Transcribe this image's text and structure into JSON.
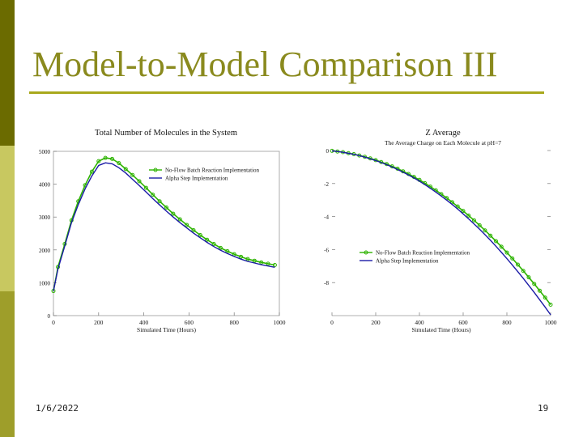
{
  "slide": {
    "title": "Model-to-Model Comparison III",
    "date": "1/6/2022",
    "page_number": "19",
    "colors": {
      "accent": "#8a8a1e",
      "rule": "#a8a81c",
      "bar_dark": "#6b6b00",
      "bar_light": "#c8c860",
      "bar_mid": "#9e9e2a"
    }
  },
  "chart_data": [
    {
      "type": "line",
      "title": "Total Number of Molecules in the System",
      "subtitle": "",
      "xlabel": "Simulated Time (Hours)",
      "ylabel": "",
      "xlim": [
        0,
        1000
      ],
      "ylim": [
        0,
        5000
      ],
      "x_ticks": [
        "0",
        "200",
        "400",
        "600",
        "800",
        "1000"
      ],
      "y_ticks": [
        "0",
        "1000",
        "2000",
        "3000",
        "4000",
        "5000"
      ],
      "legend": "upper-right",
      "series": [
        {
          "name": "No-Flow Batch Reaction Implementation",
          "color": "#2db300",
          "marker": "circle",
          "x": [
            0,
            20,
            50,
            80,
            110,
            140,
            170,
            200,
            230,
            260,
            290,
            320,
            350,
            380,
            410,
            440,
            470,
            500,
            530,
            560,
            590,
            620,
            650,
            680,
            710,
            740,
            770,
            800,
            830,
            860,
            890,
            920,
            950,
            980
          ],
          "values": [
            750,
            1480,
            2180,
            2900,
            3480,
            3970,
            4380,
            4700,
            4800,
            4770,
            4640,
            4460,
            4280,
            4090,
            3890,
            3680,
            3480,
            3290,
            3100,
            2930,
            2760,
            2600,
            2450,
            2310,
            2180,
            2060,
            1960,
            1870,
            1790,
            1720,
            1670,
            1620,
            1580,
            1540
          ]
        },
        {
          "name": "Alpha Step Implementation",
          "color": "#1a1aa6",
          "marker": "",
          "x": [
            0,
            20,
            50,
            80,
            110,
            140,
            170,
            200,
            230,
            260,
            290,
            320,
            350,
            380,
            410,
            440,
            470,
            500,
            530,
            560,
            590,
            620,
            650,
            680,
            710,
            740,
            770,
            800,
            830,
            860,
            890,
            920,
            950,
            980
          ],
          "values": [
            750,
            1420,
            2120,
            2830,
            3380,
            3860,
            4250,
            4570,
            4650,
            4620,
            4500,
            4340,
            4150,
            3960,
            3760,
            3560,
            3370,
            3180,
            3000,
            2830,
            2670,
            2510,
            2370,
            2230,
            2100,
            1990,
            1890,
            1800,
            1720,
            1650,
            1600,
            1550,
            1510,
            1470
          ]
        }
      ]
    },
    {
      "type": "line",
      "title": "Z Average",
      "subtitle": "The Average Charge on Each Molecule at pH=7",
      "xlabel": "Simulated Time (Hours)",
      "ylabel": "",
      "xlim": [
        0,
        1000
      ],
      "ylim": [
        -10,
        0
      ],
      "x_ticks": [
        "0",
        "200",
        "400",
        "600",
        "800",
        "1000"
      ],
      "y_ticks": [
        "0",
        "-2",
        "-4",
        "-6",
        "-8"
      ],
      "legend": "lower-left",
      "series": [
        {
          "name": "No-Flow Batch Reaction Implementation",
          "color": "#2db300",
          "marker": "circle",
          "x": [
            0,
            25,
            50,
            75,
            100,
            125,
            150,
            175,
            200,
            225,
            250,
            275,
            300,
            325,
            350,
            375,
            400,
            425,
            450,
            475,
            500,
            525,
            550,
            575,
            600,
            625,
            650,
            675,
            700,
            725,
            750,
            775,
            800,
            825,
            850,
            875,
            900,
            925,
            950,
            975,
            1000
          ],
          "values": [
            -0.02,
            -0.06,
            -0.1,
            -0.16,
            -0.22,
            -0.3,
            -0.38,
            -0.48,
            -0.58,
            -0.7,
            -0.82,
            -0.96,
            -1.1,
            -1.26,
            -1.42,
            -1.6,
            -1.78,
            -1.98,
            -2.19,
            -2.41,
            -2.64,
            -2.88,
            -3.13,
            -3.39,
            -3.66,
            -3.94,
            -4.23,
            -4.53,
            -4.84,
            -5.16,
            -5.49,
            -5.83,
            -6.18,
            -6.54,
            -6.91,
            -7.29,
            -7.68,
            -8.08,
            -8.49,
            -8.91,
            -9.34
          ]
        },
        {
          "name": "Alpha Step Implementation",
          "color": "#1a1aa6",
          "marker": "",
          "x": [
            0,
            25,
            50,
            75,
            100,
            125,
            150,
            175,
            200,
            225,
            250,
            275,
            300,
            325,
            350,
            375,
            400,
            425,
            450,
            475,
            500,
            525,
            550,
            575,
            600,
            625,
            650,
            675,
            700,
            725,
            750,
            775,
            800,
            825,
            850,
            875,
            900,
            925,
            950,
            975,
            1000
          ],
          "values": [
            -0.02,
            -0.06,
            -0.11,
            -0.17,
            -0.23,
            -0.31,
            -0.4,
            -0.5,
            -0.61,
            -0.73,
            -0.86,
            -1.0,
            -1.15,
            -1.31,
            -1.48,
            -1.66,
            -1.86,
            -2.07,
            -2.29,
            -2.52,
            -2.76,
            -3.01,
            -3.27,
            -3.55,
            -3.84,
            -4.14,
            -4.45,
            -4.77,
            -5.1,
            -5.44,
            -5.8,
            -6.17,
            -6.55,
            -6.94,
            -7.34,
            -7.75,
            -8.17,
            -8.6,
            -9.04,
            -9.49,
            -9.95
          ]
        }
      ]
    }
  ]
}
